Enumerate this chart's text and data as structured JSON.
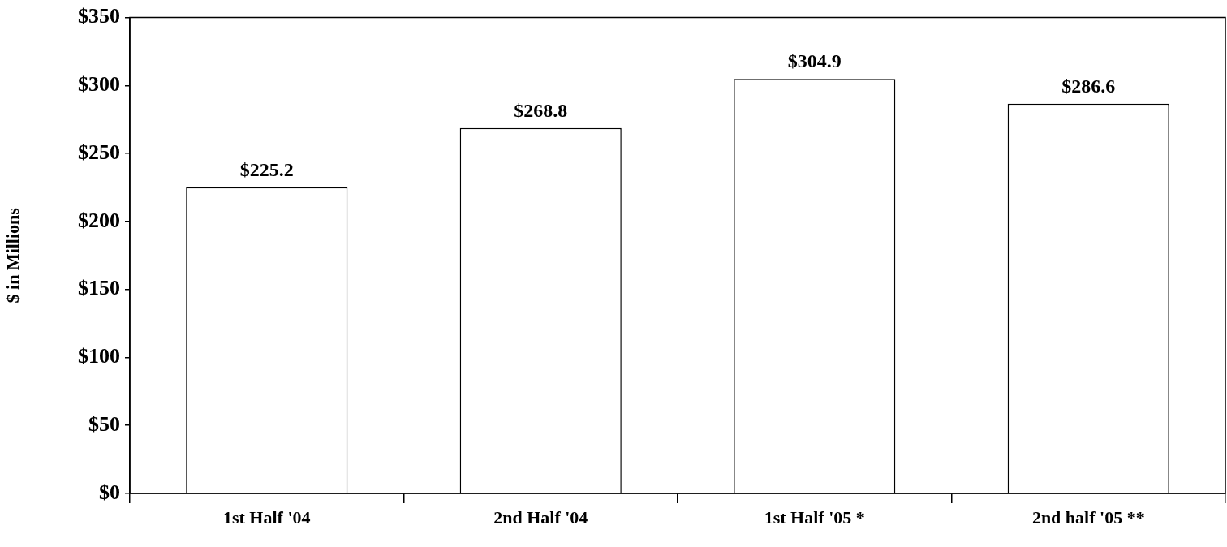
{
  "chart_data": {
    "type": "bar",
    "ylabel": "$ in Millions",
    "categories": [
      "1st Half '04",
      "2nd Half '04",
      "1st Half '05 *",
      "2nd half '05 **"
    ],
    "values": [
      225.2,
      268.8,
      304.9,
      286.6
    ],
    "value_labels": [
      "$225.2",
      "$268.8",
      "$304.9",
      "$286.6"
    ],
    "color": "#ffffff",
    "ylim": [
      0,
      350
    ],
    "yticks": [
      {
        "value": 0,
        "label": "$0"
      },
      {
        "value": 50,
        "label": "$50"
      },
      {
        "value": 100,
        "label": "$100"
      },
      {
        "value": 150,
        "label": "$150"
      },
      {
        "value": 200,
        "label": "$200"
      },
      {
        "value": 250,
        "label": "$250"
      },
      {
        "value": 300,
        "label": "$300"
      },
      {
        "value": 350,
        "label": "$350"
      }
    ],
    "grid": false,
    "legend": false
  }
}
